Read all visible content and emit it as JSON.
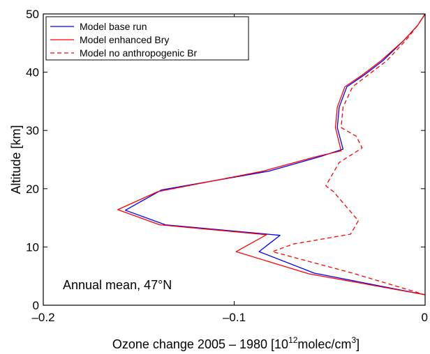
{
  "chart_data": {
    "type": "line",
    "xlabel_main": "Ozone change 2005 – 1980 [10",
    "xlabel_sup1": "12",
    "xlabel_mid": "molec/cm",
    "xlabel_sup2": "3",
    "xlabel_end": "]",
    "ylabel": "Altitude [km]",
    "xlim": [
      -0.2,
      0
    ],
    "ylim": [
      0,
      50
    ],
    "xticks": [
      -0.2,
      -0.1,
      0
    ],
    "xtick_labels": [
      "–0.2",
      "–0.1",
      "0"
    ],
    "yticks": [
      0,
      10,
      20,
      30,
      40,
      50
    ],
    "ytick_labels": [
      "0",
      "10",
      "20",
      "30",
      "40",
      "50"
    ],
    "annotation": "Annual mean, 47°N",
    "legend_position": "top-left",
    "series": [
      {
        "name": "Model base run",
        "color": "#0000ff",
        "style": "solid",
        "points": [
          [
            0.0,
            50.0
          ],
          [
            -0.004,
            48.0
          ],
          [
            -0.011,
            45.5
          ],
          [
            -0.022,
            42.0
          ],
          [
            -0.032,
            39.5
          ],
          [
            -0.041,
            37.5
          ],
          [
            -0.045,
            34.0
          ],
          [
            -0.046,
            30.5
          ],
          [
            -0.043,
            26.8
          ],
          [
            -0.055,
            25.5
          ],
          [
            -0.082,
            23.0
          ],
          [
            -0.138,
            19.8
          ],
          [
            -0.157,
            16.3
          ],
          [
            -0.136,
            13.8
          ],
          [
            -0.076,
            12.0
          ],
          [
            -0.087,
            9.2
          ],
          [
            -0.058,
            5.5
          ],
          [
            0.0,
            1.8
          ]
        ]
      },
      {
        "name": "Model enhanced Bry",
        "color": "#ff0000",
        "style": "solid",
        "points": [
          [
            0.0,
            50.0
          ],
          [
            -0.004,
            48.0
          ],
          [
            -0.011,
            45.5
          ],
          [
            -0.023,
            42.0
          ],
          [
            -0.033,
            39.5
          ],
          [
            -0.042,
            37.5
          ],
          [
            -0.046,
            34.0
          ],
          [
            -0.047,
            30.5
          ],
          [
            -0.044,
            26.5
          ],
          [
            -0.057,
            25.5
          ],
          [
            -0.085,
            23.0
          ],
          [
            -0.14,
            19.5
          ],
          [
            -0.161,
            16.4
          ],
          [
            -0.139,
            13.8
          ],
          [
            -0.083,
            12.1
          ],
          [
            -0.099,
            9.2
          ],
          [
            -0.061,
            5.4
          ],
          [
            0.0,
            1.8
          ]
        ]
      },
      {
        "name": "Model no anthropogenic Br",
        "color": "#ff0000",
        "style": "dashed",
        "points": [
          [
            0.0,
            50.0
          ],
          [
            -0.004,
            48.0
          ],
          [
            -0.01,
            45.5
          ],
          [
            -0.02,
            42.0
          ],
          [
            -0.03,
            39.5
          ],
          [
            -0.038,
            37.5
          ],
          [
            -0.043,
            34.0
          ],
          [
            -0.044,
            30.5
          ],
          [
            -0.036,
            29.0
          ],
          [
            -0.033,
            27.0
          ],
          [
            -0.045,
            24.5
          ],
          [
            -0.052,
            20.5
          ],
          [
            -0.048,
            19.5
          ],
          [
            -0.035,
            14.5
          ],
          [
            -0.039,
            12.2
          ],
          [
            -0.069,
            10.5
          ],
          [
            -0.08,
            9.2
          ],
          [
            -0.038,
            5.5
          ],
          [
            0.0,
            1.8
          ]
        ]
      }
    ]
  }
}
